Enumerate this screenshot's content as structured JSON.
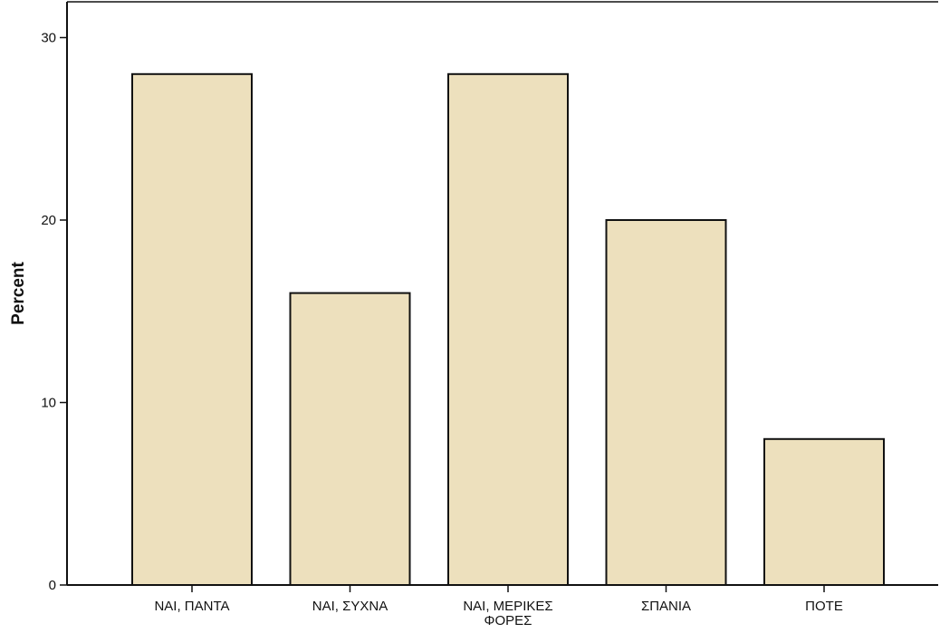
{
  "chart_data": {
    "type": "bar",
    "title": "",
    "xlabel": "",
    "ylabel": "Percent",
    "categories": [
      [
        "ΝΑΙ, ΠΑΝΤΑ"
      ],
      [
        "ΝΑΙ, ΣΥΧΝΑ"
      ],
      [
        "ΝΑΙ, ΜΕΡΙΚΕΣ",
        "ΦΟΡΕΣ"
      ],
      [
        "ΣΠΑΝΙΑ"
      ],
      [
        "ΠΟΤΕ"
      ]
    ],
    "values": [
      28,
      16,
      28,
      20,
      8
    ],
    "ylim": [
      0,
      32
    ],
    "yticks": [
      "0",
      "10",
      "20",
      "30"
    ],
    "grid": false,
    "colors": {
      "bar_fill": "#ede0bd",
      "bar_stroke": "#111111",
      "axis": "#111111"
    }
  }
}
